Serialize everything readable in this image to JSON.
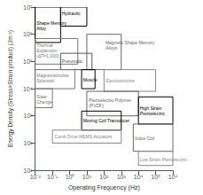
{
  "chart_data": {
    "type": "box",
    "title": "",
    "xlabel": "Operating Frequency (Hz)",
    "ylabel": "Energy Density (Stress×Strain product) (Jm⁻³)",
    "log": true,
    "grid": false,
    "xlim": [
      0.01,
      1000000.0
    ],
    "ylim": [
      10,
      10000000.0
    ],
    "xticks": [
      {
        "value": 0.01,
        "label": "10⁻²"
      },
      {
        "value": 0.1,
        "label": "10⁻¹"
      },
      {
        "value": 1,
        "label": "10⁰"
      },
      {
        "value": 10,
        "label": "10¹"
      },
      {
        "value": 100,
        "label": "10²"
      },
      {
        "value": 1000,
        "label": "10³"
      },
      {
        "value": 10000,
        "label": "10⁴"
      },
      {
        "value": 100000,
        "label": "10⁵"
      },
      {
        "value": 1000000,
        "label": "10⁶"
      }
    ],
    "yticks": [
      {
        "value": 10,
        "label": "10¹"
      },
      {
        "value": 100,
        "label": "10²"
      },
      {
        "value": 1000,
        "label": "10³"
      },
      {
        "value": 10000,
        "label": "10⁴"
      },
      {
        "value": 100000,
        "label": "10⁵"
      },
      {
        "value": 1000000,
        "label": "10⁶"
      },
      {
        "value": 10000000,
        "label": "10⁷"
      }
    ],
    "boxes": [
      {
        "label": "Shape Memory\nAlloy",
        "x1": 0.01,
        "x2": 0.3,
        "y1": 500000.0,
        "y2": 10000000.0,
        "color": "black",
        "label_x": 0.012,
        "label_y": 2000000.0
      },
      {
        "label": "Hydraulic",
        "x1": 0.3,
        "x2": 10,
        "y1": 2000000.0,
        "y2": 10000000.0,
        "color": "black",
        "label_x": 0.35,
        "label_y": 6000000.0
      },
      {
        "label": "Thermal\nExpansion\n(ΔT=1,000)",
        "x1": 0.01,
        "x2": 3.0,
        "y1": 80000.0,
        "y2": 700000.0,
        "color": "#777777",
        "label_x": 0.012,
        "label_y": 250000.0
      },
      {
        "label": "Pneumatic",
        "x1": 0.3,
        "x2": 20,
        "y1": 50000.0,
        "y2": 200000.0,
        "color": "#555555",
        "label_x": 0.35,
        "label_y": 100000.0
      },
      {
        "label": "Magnetostrictive\nSolenoid",
        "x1": 0.01,
        "x2": 2.0,
        "y1": 10000.0,
        "y2": 50000.0,
        "color": "#777777",
        "label_x": 0.012,
        "label_y": 25000.0
      },
      {
        "label": "State\nChange",
        "x1": 0.01,
        "x2": 0.1,
        "y1": 2000.0,
        "y2": 10000.0,
        "color": "#777777",
        "label_x": 0.012,
        "label_y": 4000.0
      },
      {
        "label": "Magnetic Shape Memory\nAlloys",
        "x1": 10,
        "x2": 1000,
        "y1": 50000.0,
        "y2": 1000000.0,
        "color": "#666666",
        "label_x": 120,
        "label_y": 400000.0
      },
      {
        "label": "Muscle",
        "x1": 5,
        "x2": 30,
        "y1": 10000.0,
        "y2": 50000.0,
        "color": "black",
        "label_x": 6,
        "label_y": 22000.0
      },
      {
        "label": "Electrostrictive",
        "x1": 100,
        "x2": 100000.0,
        "y1": 8000.0,
        "y2": 50000.0,
        "color": "#888888",
        "label_x": 130,
        "label_y": 20000.0
      },
      {
        "label": "Piezoelectric Polymer\n(PVDF)",
        "x1": 10,
        "x2": 10000.0,
        "y1": 1000.0,
        "y2": 8000.0,
        "color": "#666666",
        "label_x": 13,
        "label_y": 3000.0
      },
      {
        "label": "Moving Coil Transducer",
        "x1": 5,
        "x2": 1000,
        "y1": 300.0,
        "y2": 1500.0,
        "color": "black",
        "label_x": 6,
        "label_y": 650
      },
      {
        "label": "Comb Drive MEMS Actuators",
        "x1": 0.1,
        "x2": 1000,
        "y1": 100.0,
        "y2": 300.0,
        "color": "#888888",
        "label_x": 0.13,
        "label_y": 180
      },
      {
        "label": "High Strain\nPiezoelectric",
        "x1": 10000.0,
        "x2": 1000000.0,
        "y1": 500.0,
        "y2": 5000.0,
        "color": "black",
        "label_x": 12000.0,
        "label_y": 1500.0
      },
      {
        "label": "Voice Coil",
        "x1": 5000.0,
        "x2": 1000000.0,
        "y1": 50.0,
        "y2": 500.0,
        "color": "#666666",
        "label_x": 6000.0,
        "label_y": 150.0
      },
      {
        "label": "Low Strain Piezoelectric",
        "x1": 10000.0,
        "x2": 1000000.0,
        "y1": 15,
        "y2": 50.0,
        "color": "#888888",
        "label_x": 12000.0,
        "label_y": 25
      }
    ]
  }
}
